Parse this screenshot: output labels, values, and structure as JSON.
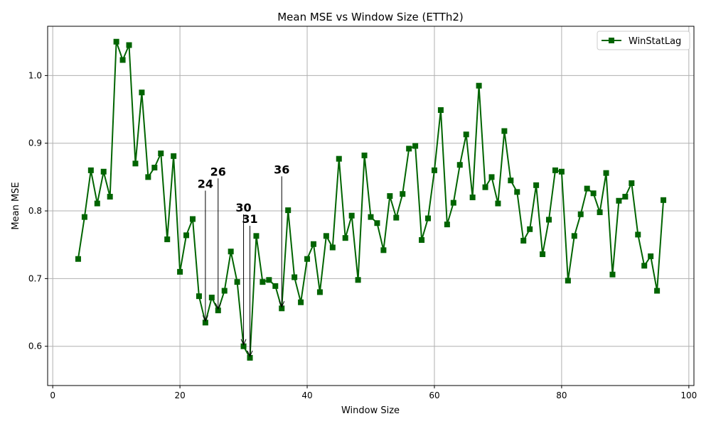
{
  "chart_data": {
    "type": "line",
    "title": "Mean MSE vs Window Size (ETTh2)",
    "xlabel": "Window Size",
    "ylabel": "Mean MSE",
    "xlim": [
      -0.8,
      100.8
    ],
    "ylim": [
      0.542,
      1.0728
    ],
    "xticks": [
      0,
      20,
      40,
      60,
      80,
      100
    ],
    "yticks": [
      0.6,
      0.7,
      0.8,
      0.9,
      1.0
    ],
    "xtick_labels": [
      "0",
      "20",
      "40",
      "60",
      "80",
      "100"
    ],
    "ytick_labels": [
      "0.6",
      "0.7",
      "0.8",
      "0.9",
      "1.0"
    ],
    "grid": true,
    "legend_position": "top-right",
    "series": [
      {
        "name": "WinStatLag",
        "color": "#006400",
        "marker": "square",
        "x": [
          4,
          5,
          6,
          7,
          8,
          9,
          10,
          11,
          12,
          13,
          14,
          15,
          16,
          17,
          18,
          19,
          20,
          21,
          22,
          23,
          24,
          25,
          26,
          27,
          28,
          29,
          30,
          31,
          32,
          33,
          34,
          35,
          36,
          37,
          38,
          39,
          40,
          41,
          42,
          43,
          44,
          45,
          46,
          47,
          48,
          49,
          50,
          51,
          52,
          53,
          54,
          55,
          56,
          57,
          58,
          59,
          60,
          61,
          62,
          63,
          64,
          65,
          66,
          67,
          68,
          69,
          70,
          71,
          72,
          73,
          74,
          75,
          76,
          77,
          78,
          79,
          80,
          81,
          82,
          83,
          84,
          85,
          86,
          87,
          88,
          89,
          90,
          91,
          92,
          93,
          94,
          95,
          96
        ],
        "y": [
          0.729,
          0.791,
          0.86,
          0.811,
          0.858,
          0.821,
          1.05,
          1.023,
          1.045,
          0.87,
          0.975,
          0.85,
          0.864,
          0.885,
          0.758,
          0.881,
          0.71,
          0.764,
          0.788,
          0.674,
          0.635,
          0.672,
          0.653,
          0.682,
          0.74,
          0.695,
          0.6,
          0.583,
          0.763,
          0.695,
          0.698,
          0.689,
          0.656,
          0.801,
          0.702,
          0.665,
          0.729,
          0.751,
          0.68,
          0.763,
          0.746,
          0.877,
          0.76,
          0.793,
          0.698,
          0.882,
          0.791,
          0.782,
          0.742,
          0.822,
          0.79,
          0.825,
          0.892,
          0.896,
          0.757,
          0.789,
          0.86,
          0.949,
          0.78,
          0.812,
          0.868,
          0.913,
          0.82,
          0.985,
          0.835,
          0.85,
          0.811,
          0.918,
          0.845,
          0.828,
          0.756,
          0.773,
          0.838,
          0.736,
          0.787,
          0.86,
          0.858,
          0.697,
          0.763,
          0.795,
          0.833,
          0.826,
          0.798,
          0.856,
          0.706,
          0.815,
          0.821,
          0.841,
          0.765,
          0.719,
          0.733,
          0.682,
          0.816
        ]
      }
    ],
    "annotations": [
      {
        "label": "24",
        "x": 24,
        "y": 0.635,
        "text_x": 24,
        "text_y": 0.83
      },
      {
        "label": "26",
        "x": 26,
        "y": 0.653,
        "text_x": 26,
        "text_y": 0.848
      },
      {
        "label": "30",
        "x": 30,
        "y": 0.6,
        "text_x": 30,
        "text_y": 0.795
      },
      {
        "label": "31",
        "x": 31,
        "y": 0.583,
        "text_x": 31,
        "text_y": 0.778
      },
      {
        "label": "36",
        "x": 36,
        "y": 0.656,
        "text_x": 36,
        "text_y": 0.851
      }
    ]
  }
}
